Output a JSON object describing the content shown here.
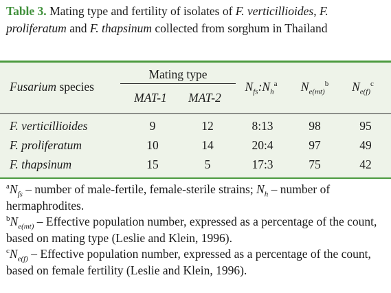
{
  "caption": {
    "label": "Table 3.",
    "text": [
      "Mating type and fertility of isolates of ",
      "F. verticillioides",
      ", ",
      "F. proliferatum",
      " and ",
      "F. thapsinum",
      " collected from sorghum in Thailand"
    ]
  },
  "table": {
    "header": {
      "species": [
        "Fusarium",
        " species"
      ],
      "mating_type": "Mating type",
      "mat1": "MAT-1",
      "mat2": "MAT-2",
      "ratio": [
        "N",
        "fs",
        ":N",
        "h",
        "a"
      ],
      "ne_mt": [
        "N",
        "e(mt)",
        "b"
      ],
      "ne_f": [
        "N",
        "e(f)",
        "c"
      ]
    },
    "rows": [
      [
        "F. verticillioides",
        9,
        12,
        "8:13",
        98,
        95
      ],
      [
        "F. proliferatum",
        10,
        14,
        "20:4",
        97,
        49
      ],
      [
        "F. thapsinum",
        15,
        5,
        "17:3",
        75,
        42
      ]
    ]
  },
  "footnotes": [
    [
      "a",
      "N",
      "fs",
      " – number of male-fertile, female-sterile strains; ",
      "N",
      "h",
      " – number of hermaphrodites."
    ],
    [
      "b",
      "N",
      "e(mt)",
      " – Effective population number, expressed as a percentage of the count, based on mating type (Leslie and Klein, 1996)."
    ],
    [
      "c",
      "N",
      "e(f)",
      " – Effective population number, expressed as a percentage of the count, based on female fertility (Leslie and Klein, 1996)."
    ]
  ]
}
